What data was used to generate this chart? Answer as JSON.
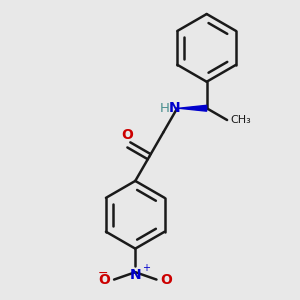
{
  "background_color": "#e8e8e8",
  "bond_color": "#1a1a1a",
  "bond_width": 1.8,
  "wedge_color": "#0000cc",
  "O_color": "#cc0000",
  "N_color": "#0000cc",
  "H_color": "#4a9090",
  "figsize": [
    3.0,
    3.0
  ],
  "dpi": 100,
  "xlim": [
    0,
    10
  ],
  "ylim": [
    0,
    10
  ]
}
